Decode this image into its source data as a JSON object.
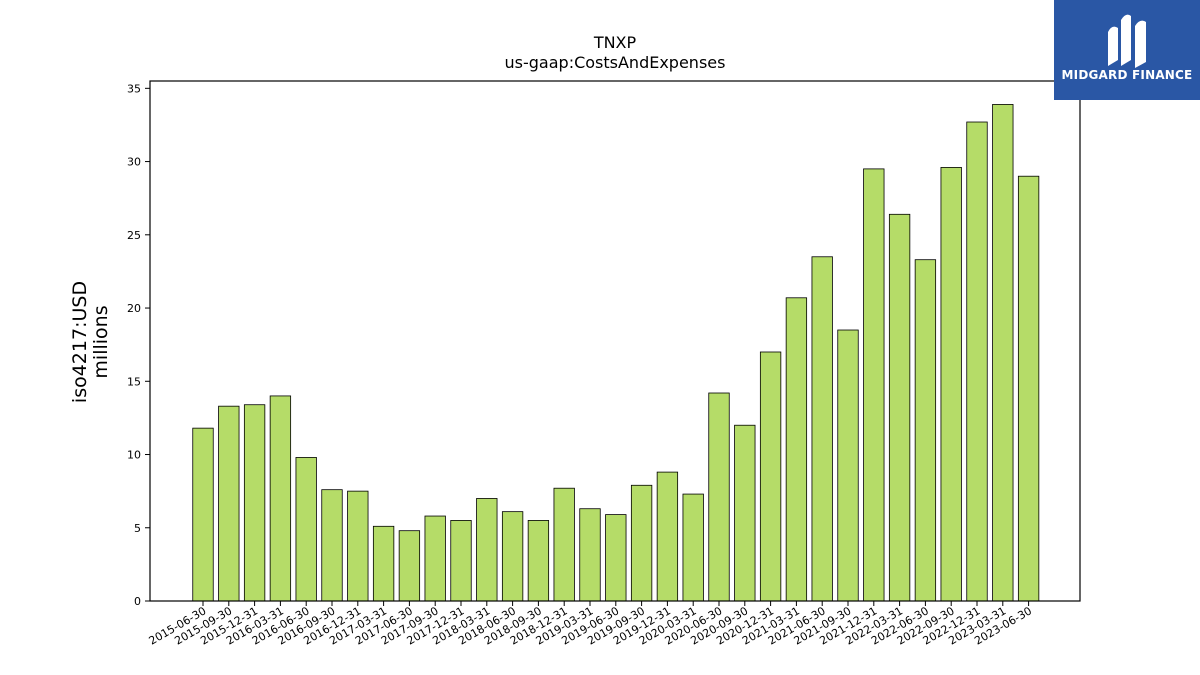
{
  "chart_data": {
    "type": "bar",
    "title": "TNXP",
    "subtitle": "us-gaap:CostsAndExpenses",
    "ylabel": "iso4217:USD",
    "ylabel_unit": "millions",
    "ylim": [
      0,
      35.5
    ],
    "yticks": [
      0,
      5,
      10,
      15,
      20,
      25,
      30,
      35
    ],
    "categories": [
      "2015-06-30",
      "2015-09-30",
      "2015-12-31",
      "2016-03-31",
      "2016-06-30",
      "2016-09-30",
      "2016-12-31",
      "2017-03-31",
      "2017-06-30",
      "2017-09-30",
      "2017-12-31",
      "2018-03-31",
      "2018-06-30",
      "2018-09-30",
      "2018-12-31",
      "2019-03-31",
      "2019-06-30",
      "2019-09-30",
      "2019-12-31",
      "2020-03-31",
      "2020-06-30",
      "2020-09-30",
      "2020-12-31",
      "2021-03-31",
      "2021-06-30",
      "2021-09-30",
      "2021-12-31",
      "2022-03-31",
      "2022-06-30",
      "2022-09-30",
      "2022-12-31",
      "2023-03-31",
      "2023-06-30"
    ],
    "values": [
      11.8,
      13.3,
      13.4,
      14.0,
      9.8,
      7.6,
      7.5,
      5.1,
      4.8,
      5.8,
      5.5,
      7.0,
      6.1,
      5.5,
      7.7,
      6.3,
      5.9,
      7.9,
      8.8,
      7.3,
      14.2,
      12.0,
      17.0,
      20.7,
      23.5,
      18.5,
      29.5,
      26.4,
      23.3,
      29.6,
      32.7,
      33.9,
      29.0
    ],
    "grid": false,
    "bar_color": "#b5dc68"
  },
  "logo": {
    "text": "MIDGARD FINANCE",
    "background": "#2a57a5"
  }
}
